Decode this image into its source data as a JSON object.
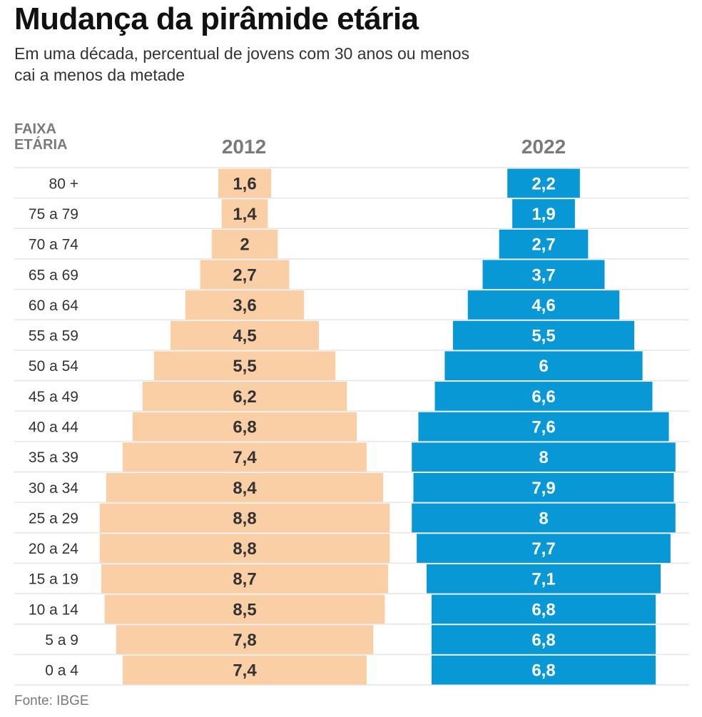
{
  "title": "Mudança da pirâmide etária",
  "subtitle": "Em uma década, percentual de jovens com 30 anos ou menos cai a menos da metade",
  "source": "Fonte: IBGE",
  "colors": {
    "series_2012": "#fbcfa6",
    "series_2022": "#0898d6",
    "label_2012": "#333333",
    "label_2022": "#ffffff",
    "gridline": "#e6e6e6",
    "muted_text": "#7a7a7a"
  },
  "chart_data": {
    "type": "bar",
    "orientation": "horizontal-centered (population pyramid)",
    "title": "Mudança da pirâmide etária",
    "subtitle": "Em uma década, percentual de jovens com 30 anos ou menos cai a menos da metade",
    "category_header": "FAIXA ETÁRIA",
    "unit": "%",
    "categories": [
      "80 +",
      "75 a 79",
      "70 a 74",
      "65 a 69",
      "60 a 64",
      "55 a 59",
      "50 a 54",
      "45 a 49",
      "40 a 44",
      "35 a 39",
      "30 a 34",
      "25 a 29",
      "20 a 24",
      "15 a 19",
      "10 a 14",
      "5 a 9",
      "0 a 4"
    ],
    "series": [
      {
        "name": "2012",
        "values": [
          1.6,
          1.4,
          2,
          2.7,
          3.6,
          4.5,
          5.5,
          6.2,
          6.8,
          7.4,
          8.4,
          8.8,
          8.8,
          8.7,
          8.5,
          7.8,
          7.4
        ],
        "labels": [
          "1,6",
          "1,4",
          "2",
          "2,7",
          "3,6",
          "4,5",
          "5,5",
          "6,2",
          "6,8",
          "7,4",
          "8,4",
          "8,8",
          "8,8",
          "8,7",
          "8,5",
          "7,8",
          "7,4"
        ]
      },
      {
        "name": "2022",
        "values": [
          2.2,
          1.9,
          2.7,
          3.7,
          4.6,
          5.5,
          6,
          6.6,
          7.6,
          8,
          7.9,
          8,
          7.7,
          7.1,
          6.8,
          6.8,
          6.8
        ],
        "labels": [
          "2,2",
          "1,9",
          "2,7",
          "3,7",
          "4,6",
          "5,5",
          "6",
          "6,6",
          "7,6",
          "8",
          "7,9",
          "8",
          "7,7",
          "7,1",
          "6,8",
          "6,8",
          "6,8"
        ]
      }
    ],
    "xlabel": "",
    "ylabel": "FAIXA ETÁRIA",
    "grid": true,
    "legend": "column headers (top)",
    "source": "Fonte: IBGE"
  }
}
